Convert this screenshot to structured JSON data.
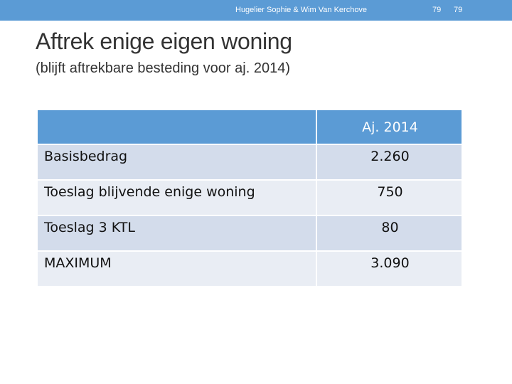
{
  "header": {
    "author": "Hugelier Sophie & Wim Van Kerchove",
    "page_number": "79",
    "page_number_repeat": "79",
    "bar_color": "#5b9bd5"
  },
  "title": "Aftrek enige eigen woning",
  "subtitle": "(blijft aftrekbare besteding voor aj. 2014)",
  "table": {
    "header": [
      "",
      "Aj. 2014"
    ],
    "rows": [
      {
        "label": "Basisbedrag",
        "value": "2.260"
      },
      {
        "label": "Toeslag blijvende enige woning",
        "value": "750"
      },
      {
        "label": "Toeslag 3 KTL",
        "value": "80"
      },
      {
        "label": "MAXIMUM",
        "value": "3.090"
      }
    ],
    "header_color": "#5b9bd5",
    "row_color": "#d3dceb",
    "alt_row_color": "#e9edf4"
  }
}
